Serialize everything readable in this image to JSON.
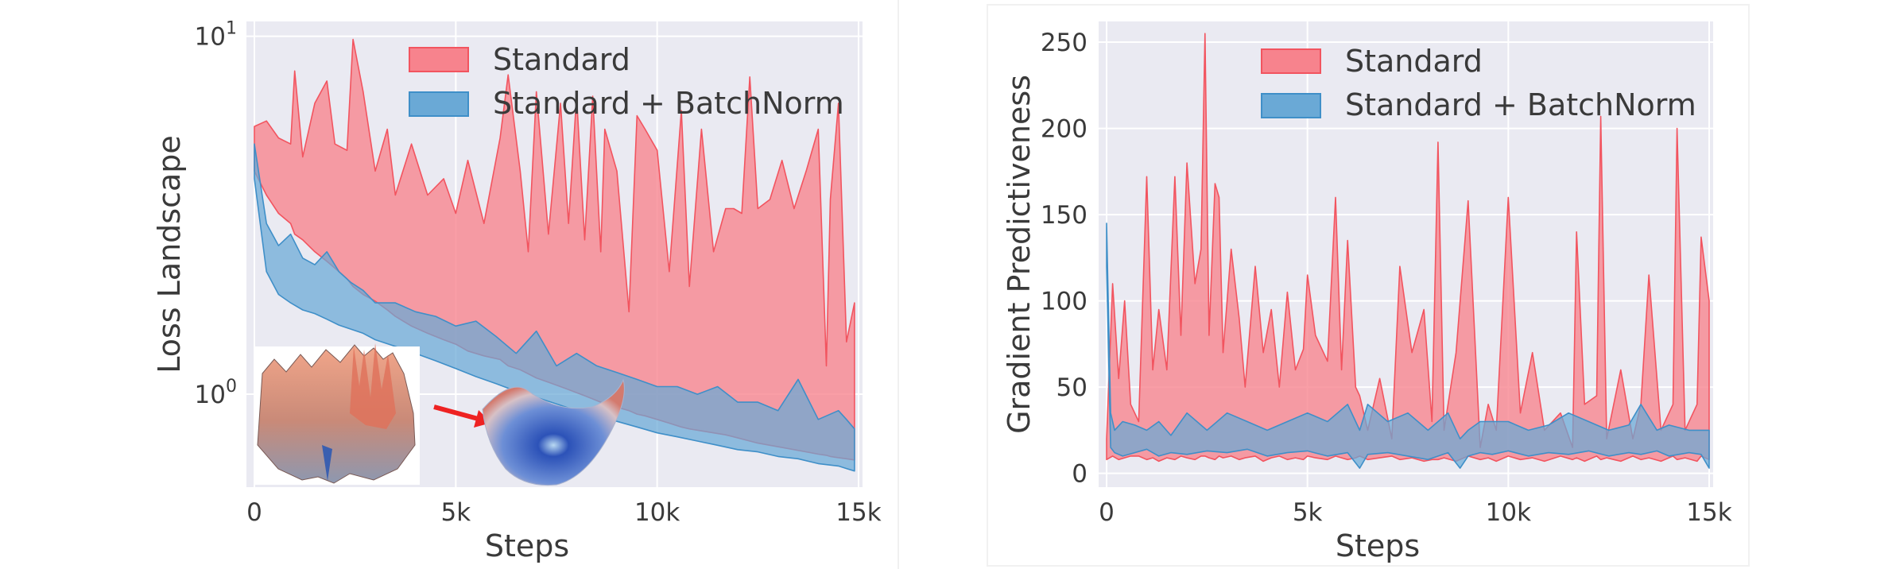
{
  "colors": {
    "standard_fill": "#f7838d",
    "standard_line": "#f2545f",
    "batchnorm_fill": "#6aa9d6",
    "batchnorm_line": "#3f8fc8",
    "panel_bg": "#eaeaf2",
    "grid": "#ffffff",
    "arrow": "#ee2222"
  },
  "chart_data": [
    {
      "type": "area",
      "ylabel": "Loss Landscape",
      "xlabel": "Steps",
      "yscale": "log",
      "xlim": [
        0,
        15000
      ],
      "ylim": [
        0.55,
        11
      ],
      "x_ticks": [
        {
          "value": 0,
          "label": "0"
        },
        {
          "value": 5000,
          "label": "5k"
        },
        {
          "value": 10000,
          "label": "10k"
        },
        {
          "value": 15000,
          "label": "15k"
        }
      ],
      "y_ticks": [
        {
          "value": 1,
          "label_base": "10",
          "label_exp": "0"
        },
        {
          "value": 10,
          "label_base": "10",
          "label_exp": "1"
        }
      ],
      "legend": [
        "Standard",
        "Standard + BatchNorm"
      ],
      "legend_position": "top-right",
      "series": [
        {
          "name": "Standard",
          "x": [
            0,
            300,
            600,
            900,
            1000,
            1200,
            1500,
            1800,
            2000,
            2300,
            2450,
            2700,
            3000,
            3300,
            3500,
            3900,
            4300,
            4700,
            5000,
            5300,
            5700,
            6100,
            6300,
            6600,
            6800,
            7000,
            7300,
            7600,
            7800,
            8000,
            8200,
            8400,
            8600,
            8700,
            9000,
            9300,
            9500,
            9700,
            10000,
            10300,
            10600,
            10800,
            11100,
            11400,
            11700,
            11900,
            12100,
            12300,
            12500,
            12800,
            13100,
            13400,
            13700,
            14000,
            14200,
            14300,
            14500,
            14700,
            14900
          ],
          "upper": [
            5.6,
            5.8,
            5.2,
            5.0,
            8.0,
            4.6,
            6.5,
            7.5,
            5.0,
            4.8,
            9.8,
            7.0,
            4.2,
            5.5,
            3.6,
            5.0,
            3.6,
            4.0,
            3.2,
            4.5,
            3.0,
            5.2,
            7.8,
            4.2,
            2.5,
            7.0,
            2.8,
            6.5,
            3.0,
            6.8,
            2.7,
            6.8,
            2.5,
            5.5,
            4.2,
            1.7,
            6.0,
            5.5,
            4.8,
            2.2,
            6.2,
            2.0,
            5.5,
            2.5,
            3.3,
            3.3,
            3.2,
            7.7,
            3.3,
            3.5,
            4.5,
            3.3,
            4.2,
            5.5,
            1.2,
            3.5,
            6.5,
            1.4,
            1.8
          ],
          "lower": [
            4.2,
            3.6,
            3.2,
            3.0,
            2.8,
            2.7,
            2.5,
            2.35,
            2.25,
            2.1,
            2.0,
            1.9,
            1.82,
            1.72,
            1.65,
            1.55,
            1.48,
            1.42,
            1.38,
            1.32,
            1.28,
            1.25,
            1.2,
            1.17,
            1.14,
            1.11,
            1.08,
            1.05,
            1.03,
            1.01,
            0.99,
            0.97,
            0.95,
            0.94,
            0.92,
            0.9,
            0.88,
            0.87,
            0.85,
            0.83,
            0.81,
            0.8,
            0.79,
            0.78,
            0.77,
            0.76,
            0.75,
            0.74,
            0.73,
            0.72,
            0.71,
            0.7,
            0.69,
            0.68,
            0.675,
            0.67,
            0.665,
            0.66,
            0.655
          ]
        },
        {
          "name": "Standard + BatchNorm",
          "x": [
            0,
            300,
            600,
            900,
            1200,
            1500,
            1800,
            2100,
            2400,
            2700,
            3000,
            3500,
            4000,
            4500,
            5000,
            5500,
            6000,
            6500,
            7000,
            7500,
            8000,
            8500,
            9000,
            9500,
            10000,
            10500,
            11000,
            11500,
            12000,
            12500,
            13000,
            13500,
            14000,
            14500,
            14700,
            14900
          ],
          "upper": [
            5.0,
            3.0,
            2.6,
            2.8,
            2.4,
            2.3,
            2.5,
            2.2,
            2.05,
            1.95,
            1.8,
            1.8,
            1.7,
            1.65,
            1.55,
            1.6,
            1.45,
            1.3,
            1.5,
            1.2,
            1.3,
            1.2,
            1.15,
            1.1,
            1.05,
            1.05,
            1.0,
            1.05,
            0.95,
            0.95,
            0.9,
            1.1,
            0.85,
            0.9,
            0.85,
            0.8
          ],
          "lower": [
            4.0,
            2.2,
            1.9,
            1.8,
            1.72,
            1.68,
            1.62,
            1.56,
            1.52,
            1.48,
            1.42,
            1.36,
            1.3,
            1.24,
            1.18,
            1.12,
            1.07,
            1.02,
            0.98,
            0.94,
            0.9,
            0.87,
            0.84,
            0.81,
            0.78,
            0.76,
            0.74,
            0.72,
            0.7,
            0.69,
            0.67,
            0.66,
            0.64,
            0.63,
            0.62,
            0.61
          ]
        }
      ]
    },
    {
      "type": "area",
      "ylabel": "Gradient Predictiveness",
      "xlabel": "Steps",
      "yscale": "linear",
      "xlim": [
        0,
        15000
      ],
      "ylim": [
        -8,
        262
      ],
      "x_ticks": [
        {
          "value": 0,
          "label": "0"
        },
        {
          "value": 5000,
          "label": "5k"
        },
        {
          "value": 10000,
          "label": "10k"
        },
        {
          "value": 15000,
          "label": "15k"
        }
      ],
      "y_ticks": [
        {
          "value": 0,
          "label": "0"
        },
        {
          "value": 50,
          "label": "50"
        },
        {
          "value": 100,
          "label": "100"
        },
        {
          "value": 150,
          "label": "150"
        },
        {
          "value": 200,
          "label": "200"
        },
        {
          "value": 250,
          "label": "250"
        }
      ],
      "legend": [
        "Standard",
        "Standard + BatchNorm"
      ],
      "legend_position": "top-right",
      "series": [
        {
          "name": "Standard",
          "x": [
            0,
            150,
            300,
            450,
            600,
            800,
            1000,
            1150,
            1300,
            1500,
            1700,
            1850,
            2000,
            2200,
            2350,
            2450,
            2550,
            2700,
            2800,
            2900,
            3100,
            3300,
            3450,
            3700,
            3900,
            4100,
            4300,
            4500,
            4700,
            4900,
            5000,
            5200,
            5500,
            5700,
            5850,
            6000,
            6200,
            6300,
            6500,
            6800,
            7100,
            7300,
            7600,
            7900,
            8100,
            8250,
            8400,
            8700,
            9000,
            9300,
            9500,
            9700,
            10000,
            10300,
            10600,
            10900,
            11300,
            11600,
            11700,
            11900,
            12200,
            12300,
            12450,
            12800,
            13100,
            13300,
            13500,
            13800,
            14100,
            14200,
            14400,
            14700,
            14800,
            15000
          ],
          "upper": [
            20,
            110,
            55,
            100,
            40,
            30,
            172,
            60,
            95,
            60,
            172,
            80,
            180,
            110,
            130,
            255,
            80,
            168,
            160,
            70,
            130,
            90,
            50,
            120,
            70,
            95,
            50,
            105,
            60,
            72,
            115,
            80,
            65,
            160,
            60,
            135,
            50,
            45,
            25,
            55,
            20,
            120,
            70,
            95,
            30,
            192,
            25,
            70,
            158,
            15,
            40,
            25,
            160,
            35,
            70,
            25,
            35,
            15,
            140,
            40,
            45,
            207,
            20,
            60,
            20,
            40,
            115,
            25,
            40,
            200,
            25,
            40,
            137,
            100
          ],
          "lower": [
            8,
            10,
            8,
            9,
            10,
            10,
            8,
            9,
            7,
            9,
            8,
            10,
            9,
            8,
            10,
            10,
            9,
            8,
            10,
            9,
            10,
            8,
            9,
            10,
            7,
            9,
            10,
            8,
            9,
            8,
            10,
            9,
            8,
            10,
            9,
            8,
            9,
            10,
            8,
            9,
            10,
            8,
            9,
            7,
            8,
            8,
            9,
            7,
            10,
            8,
            9,
            7,
            10,
            8,
            9,
            7,
            10,
            8,
            9,
            7,
            10,
            8,
            9,
            7,
            10,
            8,
            9,
            7,
            10,
            8,
            9,
            7,
            10,
            8
          ]
        },
        {
          "name": "Standard + BatchNorm",
          "x": [
            0,
            100,
            200,
            400,
            700,
            1000,
            1300,
            1600,
            2000,
            2500,
            3000,
            3500,
            4000,
            4500,
            5000,
            5500,
            6000,
            6300,
            6500,
            7000,
            7500,
            8000,
            8500,
            8800,
            9000,
            9300,
            9600,
            10000,
            10500,
            11000,
            11500,
            12000,
            12500,
            13000,
            13300,
            13700,
            14000,
            14500,
            14800,
            15000
          ],
          "upper": [
            145,
            35,
            25,
            30,
            28,
            25,
            30,
            22,
            35,
            25,
            35,
            30,
            25,
            30,
            35,
            30,
            40,
            25,
            40,
            30,
            35,
            25,
            35,
            20,
            25,
            30,
            30,
            30,
            25,
            28,
            35,
            30,
            25,
            28,
            40,
            25,
            28,
            25,
            25,
            25
          ],
          "lower": [
            120,
            15,
            12,
            10,
            12,
            14,
            10,
            12,
            11,
            13,
            12,
            14,
            10,
            12,
            13,
            10,
            12,
            3,
            11,
            12,
            10,
            8,
            12,
            3,
            10,
            12,
            11,
            13,
            10,
            12,
            11,
            13,
            10,
            12,
            11,
            13,
            10,
            12,
            11,
            3
          ]
        }
      ]
    }
  ]
}
